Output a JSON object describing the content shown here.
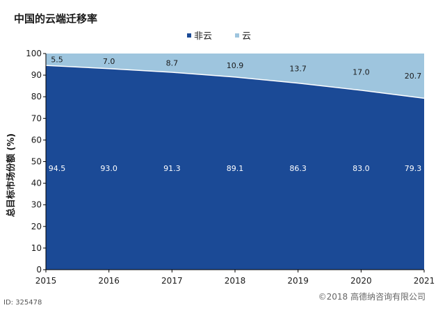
{
  "chart_data": {
    "type": "area",
    "title": "中国的云端迁移率",
    "ylabel": "总目标市场份额 (%)",
    "xlabel": "",
    "categories": [
      "2015",
      "2016",
      "2017",
      "2018",
      "2019",
      "2020",
      "2021"
    ],
    "ylim": [
      0,
      100
    ],
    "yticks": [
      0,
      10,
      20,
      30,
      40,
      50,
      60,
      70,
      80,
      90,
      100
    ],
    "stacked": true,
    "legend_position": "top-center",
    "grid": false,
    "series": [
      {
        "name": "非云",
        "values": [
          94.5,
          93.0,
          91.3,
          89.1,
          86.3,
          83.0,
          79.3
        ],
        "color": "#1b4a96"
      },
      {
        "name": "云",
        "values": [
          5.5,
          7.0,
          8.7,
          10.9,
          13.7,
          17.0,
          20.7
        ],
        "color": "#9ec5de"
      }
    ]
  },
  "footer": {
    "id_text": "ID: 325478",
    "copyright": "©2018 高德纳咨询有限公司"
  }
}
